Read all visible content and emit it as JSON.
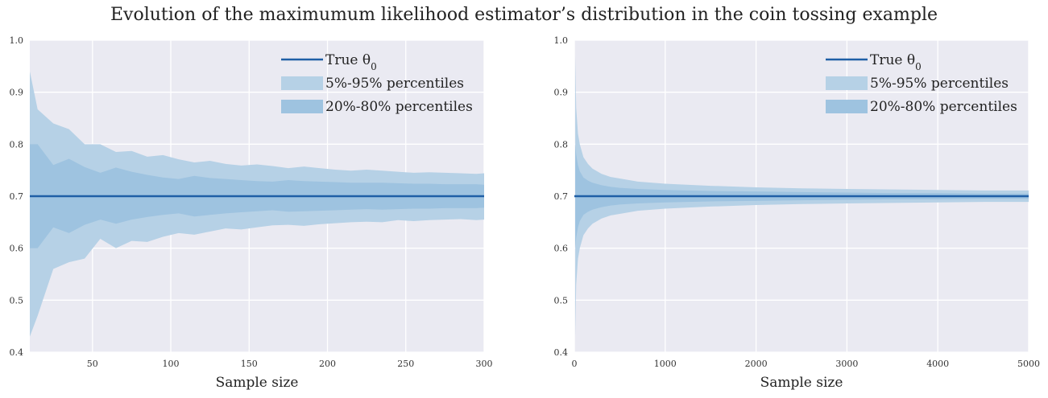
{
  "title": "Evolution of the maximumum likelihood estimator’s distribution in the coin tossing example",
  "colors": {
    "background": "#eaeaf2",
    "grid": "#ffffff",
    "line": "#1f5fa6",
    "band_outer": "#b6d1e6",
    "band_inner": "#9ec3e0"
  },
  "chart_data": [
    {
      "type": "area",
      "xlabel": "Sample size",
      "ylabel": "",
      "xlim": [
        10,
        300
      ],
      "ylim": [
        0.4,
        1.0
      ],
      "xticks": [
        50,
        100,
        150,
        200,
        250,
        300
      ],
      "yticks": [
        0.4,
        0.5,
        0.6,
        0.7,
        0.8,
        0.9,
        1.0
      ],
      "grid": true,
      "legend_position": "top-right",
      "legend": {
        "line": "True θ0",
        "outer": "5%-95% percentiles",
        "inner": "20%-80% percentiles"
      },
      "true_value": 0.7,
      "x": [
        10,
        15,
        25,
        35,
        45,
        55,
        65,
        75,
        85,
        95,
        105,
        115,
        125,
        135,
        145,
        155,
        165,
        175,
        185,
        195,
        205,
        215,
        225,
        235,
        245,
        255,
        265,
        275,
        285,
        295,
        300
      ],
      "p5": [
        0.43,
        0.47,
        0.56,
        0.573,
        0.58,
        0.618,
        0.6,
        0.614,
        0.612,
        0.622,
        0.629,
        0.626,
        0.632,
        0.638,
        0.636,
        0.64,
        0.644,
        0.645,
        0.643,
        0.646,
        0.648,
        0.65,
        0.651,
        0.65,
        0.654,
        0.652,
        0.654,
        0.655,
        0.656,
        0.654,
        0.655
      ],
      "p20": [
        0.6,
        0.6,
        0.64,
        0.629,
        0.645,
        0.655,
        0.647,
        0.655,
        0.66,
        0.664,
        0.667,
        0.661,
        0.664,
        0.667,
        0.669,
        0.671,
        0.673,
        0.67,
        0.671,
        0.672,
        0.673,
        0.674,
        0.675,
        0.674,
        0.675,
        0.676,
        0.676,
        0.677,
        0.677,
        0.677,
        0.678
      ],
      "p80": [
        0.8,
        0.8,
        0.76,
        0.772,
        0.756,
        0.745,
        0.755,
        0.747,
        0.741,
        0.736,
        0.733,
        0.739,
        0.735,
        0.733,
        0.731,
        0.729,
        0.728,
        0.731,
        0.729,
        0.728,
        0.727,
        0.726,
        0.726,
        0.726,
        0.725,
        0.724,
        0.724,
        0.723,
        0.723,
        0.723,
        0.722
      ],
      "p95": [
        0.94,
        0.867,
        0.84,
        0.829,
        0.8,
        0.8,
        0.785,
        0.787,
        0.776,
        0.779,
        0.771,
        0.765,
        0.768,
        0.762,
        0.759,
        0.761,
        0.758,
        0.754,
        0.757,
        0.754,
        0.751,
        0.749,
        0.751,
        0.749,
        0.747,
        0.745,
        0.746,
        0.745,
        0.744,
        0.743,
        0.744
      ]
    },
    {
      "type": "area",
      "xlabel": "Sample size",
      "ylabel": "",
      "xlim": [
        0,
        5000
      ],
      "ylim": [
        0.4,
        1.0
      ],
      "xticks": [
        0,
        1000,
        2000,
        3000,
        4000,
        5000
      ],
      "yticks": [
        0.4,
        0.5,
        0.6,
        0.7,
        0.8,
        0.9,
        1.0
      ],
      "grid": true,
      "legend_position": "top-right",
      "legend": {
        "line": "True θ0",
        "outer": "5%-95% percentiles",
        "inner": "20%-80% percentiles"
      },
      "true_value": 0.7,
      "x": [
        10,
        20,
        40,
        60,
        100,
        150,
        200,
        300,
        400,
        500,
        700,
        1000,
        1500,
        2000,
        2500,
        3000,
        3500,
        4000,
        4500,
        5000
      ],
      "p5": [
        0.43,
        0.53,
        0.58,
        0.6,
        0.625,
        0.638,
        0.647,
        0.657,
        0.663,
        0.666,
        0.672,
        0.676,
        0.68,
        0.683,
        0.685,
        0.686,
        0.687,
        0.688,
        0.689,
        0.689
      ],
      "p20": [
        0.6,
        0.62,
        0.64,
        0.652,
        0.664,
        0.67,
        0.674,
        0.679,
        0.682,
        0.684,
        0.686,
        0.688,
        0.69,
        0.691,
        0.692,
        0.693,
        0.694,
        0.694,
        0.695,
        0.695
      ],
      "p80": [
        0.8,
        0.78,
        0.76,
        0.748,
        0.736,
        0.73,
        0.726,
        0.721,
        0.718,
        0.716,
        0.714,
        0.712,
        0.71,
        0.709,
        0.708,
        0.707,
        0.706,
        0.706,
        0.705,
        0.705
      ],
      "p95": [
        0.97,
        0.87,
        0.82,
        0.8,
        0.775,
        0.762,
        0.753,
        0.743,
        0.737,
        0.734,
        0.728,
        0.724,
        0.72,
        0.717,
        0.715,
        0.714,
        0.713,
        0.712,
        0.711,
        0.711
      ]
    }
  ]
}
